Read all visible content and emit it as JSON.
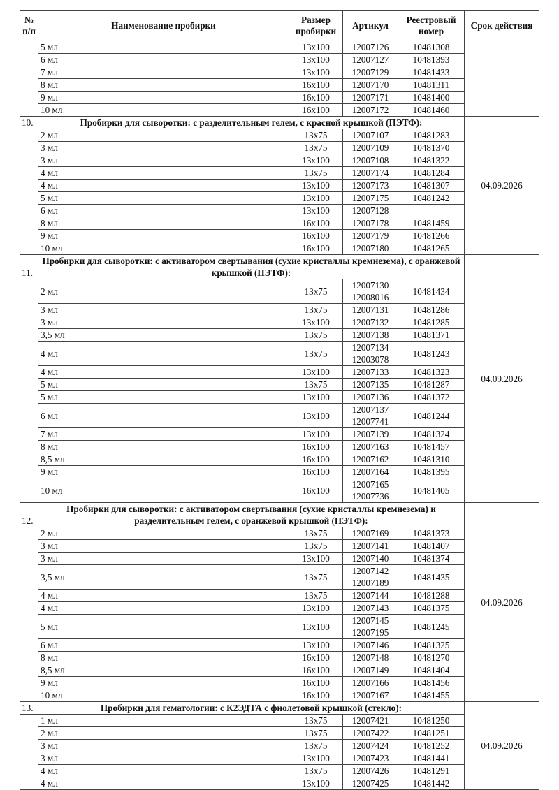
{
  "headers": {
    "num": "№ п/п",
    "name": "Наименование пробирки",
    "size": "Размер пробирки",
    "article": "Артикул",
    "registry": "Реестровый номер",
    "validity": "Срок действия"
  },
  "sections": [
    {
      "number": "",
      "title": "",
      "validity": "",
      "rows": [
        {
          "name": "5 мл",
          "size": "13x100",
          "article": [
            "12007126"
          ],
          "registry": "10481308"
        },
        {
          "name": "6 мл",
          "size": "13x100",
          "article": [
            "12007127"
          ],
          "registry": "10481393"
        },
        {
          "name": "7 мл",
          "size": "13x100",
          "article": [
            "12007129"
          ],
          "registry": "10481433"
        },
        {
          "name": "8 мл",
          "size": "16x100",
          "article": [
            "12007170"
          ],
          "registry": "10481311"
        },
        {
          "name": "9 мл",
          "size": "16x100",
          "article": [
            "12007171"
          ],
          "registry": "10481400"
        },
        {
          "name": "10 мл",
          "size": "16x100",
          "article": [
            "12007172"
          ],
          "registry": "10481460"
        }
      ]
    },
    {
      "number": "10.",
      "title": "Пробирки для сыворотки: с разделительным гелем, с красной крышкой (ПЭТФ):",
      "validity": "04.09.2026",
      "rows": [
        {
          "name": "2 мл",
          "size": "13x75",
          "article": [
            "12007107"
          ],
          "registry": "10481283"
        },
        {
          "name": "3 мл",
          "size": "13x75",
          "article": [
            "12007109"
          ],
          "registry": "10481370"
        },
        {
          "name": "3 мл",
          "size": "13x100",
          "article": [
            "12007108"
          ],
          "registry": "10481322"
        },
        {
          "name": "4 мл",
          "size": "13x75",
          "article": [
            "12007174"
          ],
          "registry": "10481284"
        },
        {
          "name": "4 мл",
          "size": "13x100",
          "article": [
            "12007173"
          ],
          "registry": "10481307"
        },
        {
          "name": "5 мл",
          "size": "13x100",
          "article": [
            "12007175"
          ],
          "registry": "10481242"
        },
        {
          "name": "6 мл",
          "size": "13x100",
          "article": [
            "12007128"
          ],
          "registry": ""
        },
        {
          "name": "8 мл",
          "size": "16x100",
          "article": [
            "12007178"
          ],
          "registry": "10481459"
        },
        {
          "name": "9 мл",
          "size": "16x100",
          "article": [
            "12007179"
          ],
          "registry": "10481266"
        },
        {
          "name": "10 мл",
          "size": "16x100",
          "article": [
            "12007180"
          ],
          "registry": "10481265"
        }
      ]
    },
    {
      "number": "11.",
      "title": "Пробирки для сыворотки: с активатором свертывания (сухие кристаллы кремнезема), с оранжевой крышкой (ПЭТФ):",
      "validity": "04.09.2026",
      "rows": [
        {
          "name": "2 мл",
          "size": "13x75",
          "article": [
            "12007130",
            "12008016"
          ],
          "registry": "10481434"
        },
        {
          "name": "3 мл",
          "size": "13x75",
          "article": [
            "12007131"
          ],
          "registry": "10481286"
        },
        {
          "name": "3 мл",
          "size": "13x100",
          "article": [
            "12007132"
          ],
          "registry": "10481285"
        },
        {
          "name": "3,5 мл",
          "size": "13x75",
          "article": [
            "12007138"
          ],
          "registry": "10481371"
        },
        {
          "name": "4 мл",
          "size": "13x75",
          "article": [
            "12007134",
            "12003078"
          ],
          "registry": "10481243"
        },
        {
          "name": "4 мл",
          "size": "13x100",
          "article": [
            "12007133"
          ],
          "registry": "10481323"
        },
        {
          "name": "5 мл",
          "size": "13x75",
          "article": [
            "12007135"
          ],
          "registry": "10481287"
        },
        {
          "name": "5 мл",
          "size": "13x100",
          "article": [
            "12007136"
          ],
          "registry": "10481372"
        },
        {
          "name": "6 мл",
          "size": "13x100",
          "article": [
            "12007137",
            "12007741"
          ],
          "registry": "10481244"
        },
        {
          "name": "7 мл",
          "size": "13x100",
          "article": [
            "12007139"
          ],
          "registry": "10481324"
        },
        {
          "name": "8 мл",
          "size": "16x100",
          "article": [
            "12007163"
          ],
          "registry": "10481457"
        },
        {
          "name": "8,5 мл",
          "size": "16x100",
          "article": [
            "12007162"
          ],
          "registry": "10481310"
        },
        {
          "name": "9 мл",
          "size": "16x100",
          "article": [
            "12007164"
          ],
          "registry": "10481395"
        },
        {
          "name": "10 мл",
          "size": "16x100",
          "article": [
            "12007165",
            "12007736"
          ],
          "registry": "10481405"
        }
      ]
    },
    {
      "number": "12.",
      "title": "Пробирки для сыворотки: с активатором свертывания (сухие кристаллы кремнезема) и разделительным гелем, с оранжевой крышкой (ПЭТФ):",
      "validity": "04.09.2026",
      "rows": [
        {
          "name": "2 мл",
          "size": "13x75",
          "article": [
            "12007169"
          ],
          "registry": "10481373"
        },
        {
          "name": "3 мл",
          "size": "13x75",
          "article": [
            "12007141"
          ],
          "registry": "10481407"
        },
        {
          "name": "3 мл",
          "size": "13x100",
          "article": [
            "12007140"
          ],
          "registry": "10481374"
        },
        {
          "name": "3,5 мл",
          "size": "13x75",
          "article": [
            "12007142",
            "12007189"
          ],
          "registry": "10481435"
        },
        {
          "name": "4 мл",
          "size": "13x75",
          "article": [
            "12007144"
          ],
          "registry": "10481288"
        },
        {
          "name": "4 мл",
          "size": "13x100",
          "article": [
            "12007143"
          ],
          "registry": "10481375"
        },
        {
          "name": "5 мл",
          "size": "13x100",
          "article": [
            "12007145",
            "12007195"
          ],
          "registry": "10481245"
        },
        {
          "name": "6 мл",
          "size": "13x100",
          "article": [
            "12007146"
          ],
          "registry": "10481325"
        },
        {
          "name": "8 мл",
          "size": "16x100",
          "article": [
            "12007148"
          ],
          "registry": "10481270"
        },
        {
          "name": "8,5 мл",
          "size": "16x100",
          "article": [
            "12007149"
          ],
          "registry": "10481404"
        },
        {
          "name": "9 мл",
          "size": "16x100",
          "article": [
            "12007166"
          ],
          "registry": "10481456"
        },
        {
          "name": "10 мл",
          "size": "16x100",
          "article": [
            "12007167"
          ],
          "registry": "10481455"
        }
      ]
    },
    {
      "number": "13.",
      "title": "Пробирки для гематологии: с К2ЭДТА с фиолетовой крышкой (стекло):",
      "validity": "04.09.2026",
      "rows": [
        {
          "name": "1 мл",
          "size": "13x75",
          "article": [
            "12007421"
          ],
          "registry": "10481250"
        },
        {
          "name": "2 мл",
          "size": "13x75",
          "article": [
            "12007422"
          ],
          "registry": "10481251"
        },
        {
          "name": "3 мл",
          "size": "13x75",
          "article": [
            "12007424"
          ],
          "registry": "10481252"
        },
        {
          "name": "3 мл",
          "size": "13x100",
          "article": [
            "12007423"
          ],
          "registry": "10481441"
        },
        {
          "name": "4 мл",
          "size": "13x75",
          "article": [
            "12007426"
          ],
          "registry": "10481291"
        },
        {
          "name": "4 мл",
          "size": "13x100",
          "article": [
            "12007425"
          ],
          "registry": "10481442"
        }
      ]
    }
  ]
}
